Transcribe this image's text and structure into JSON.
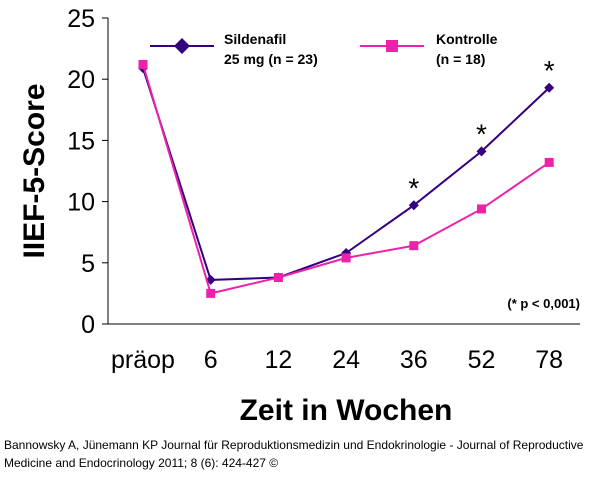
{
  "chart_data": {
    "type": "line",
    "title": "",
    "xlabel": "Zeit in Wochen",
    "ylabel": "IIEF-5-Score",
    "categories": [
      "präop",
      "6",
      "12",
      "24",
      "36",
      "52",
      "78"
    ],
    "ylim": [
      0,
      25
    ],
    "yticks": [
      "0",
      "5",
      "10",
      "15",
      "20",
      "25"
    ],
    "grid": false,
    "legend_position": "top",
    "series": [
      {
        "name_line1": "Sildenafil",
        "name_line2": "25 mg (n = 23)",
        "marker": "diamond",
        "color": "#330080",
        "values": [
          20.9,
          3.6,
          3.8,
          5.8,
          9.7,
          14.1,
          19.3
        ]
      },
      {
        "name_line1": "Kontrolle",
        "name_line2": "(n = 18)",
        "marker": "square",
        "color": "#EE22AA",
        "values": [
          21.2,
          2.5,
          3.8,
          5.4,
          6.4,
          9.4,
          13.2
        ]
      }
    ],
    "significance_marker": "*",
    "significant_categories": [
      "36",
      "52",
      "78"
    ],
    "annotation": "(* p < 0,001)"
  },
  "citation": "Bannowsky A, Jünemann KP Journal für Reproduktionsmedizin und Endokrinologie - Journal of Reproductive Medicine and Endocrinology 2011; 8 (6): 424-427 ©"
}
